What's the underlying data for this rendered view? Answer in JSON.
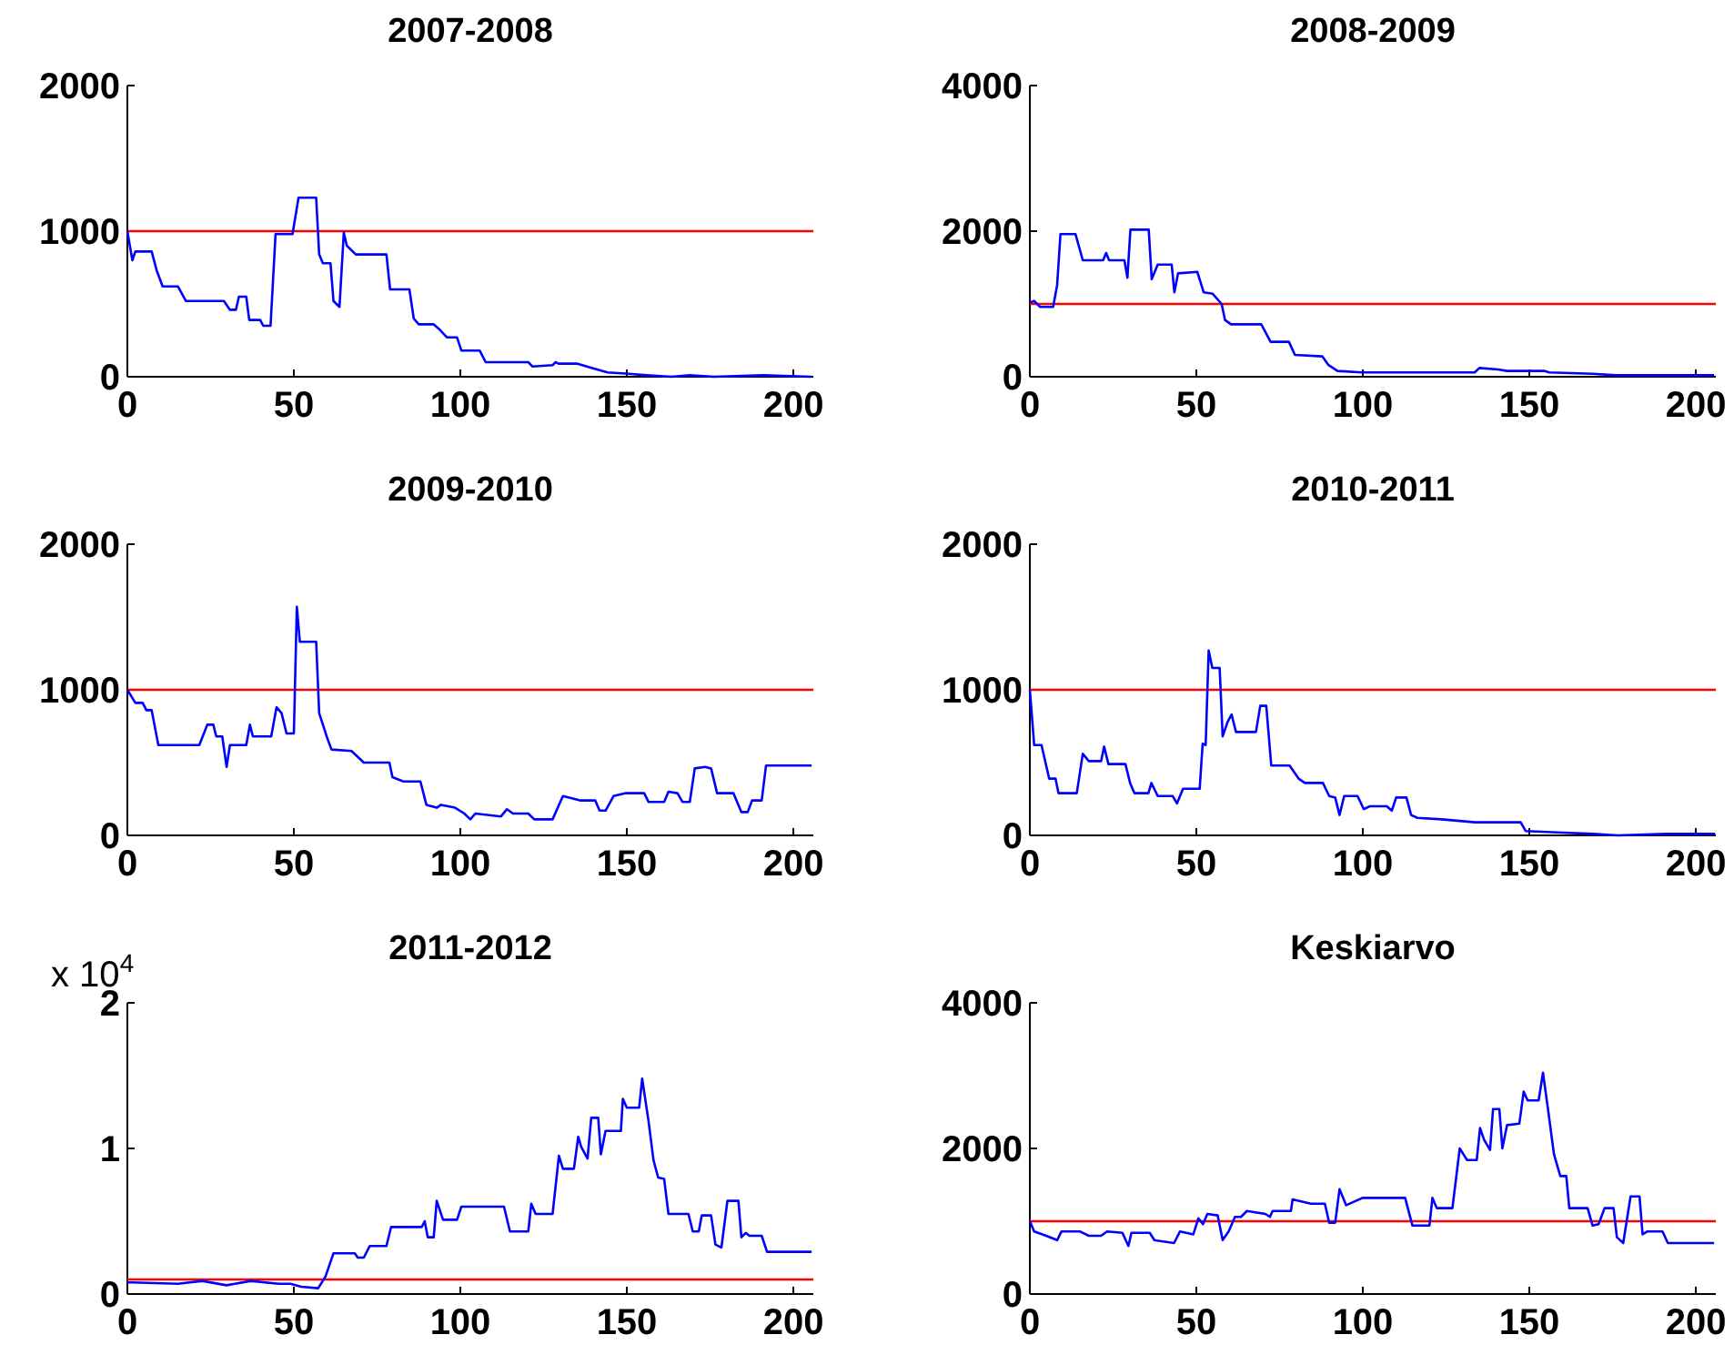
{
  "chart_data": [
    {
      "type": "line",
      "title": "2007-2008",
      "xlim": [
        0,
        206
      ],
      "xticks": [
        0,
        50,
        100,
        150,
        200
      ],
      "ylim": [
        0,
        2000
      ],
      "yticks": [
        0,
        1000,
        2000
      ],
      "ref_lines": [
        {
          "axis": "y",
          "value": 1000,
          "color": "#ff0000"
        }
      ],
      "x": [
        0,
        1.5,
        2.4,
        7.3,
        8.8,
        10.6,
        15.2,
        17.6,
        29,
        30.8,
        32.6,
        33.5,
        35.7,
        36.6,
        39.9,
        40.8,
        43,
        44.5,
        49.6,
        51.4,
        56.7,
        57.6,
        58.7,
        61,
        61.9,
        63.7,
        65,
        65.9,
        68.6,
        77.8,
        78.9,
        84.7,
        86,
        87.5,
        92,
        93.5,
        96,
        99,
        100.3,
        105.8,
        107.6,
        120.4,
        121.7,
        127.7,
        128.6,
        129.5,
        135,
        139.6,
        144.2,
        150.6,
        156,
        163.4,
        169,
        176,
        191,
        205.5
      ],
      "series": [
        {
          "color": "#0000ff",
          "values": [
            1000,
            800,
            860,
            860,
            730,
            620,
            620,
            520,
            520,
            460,
            460,
            550,
            550,
            390,
            390,
            350,
            350,
            980,
            980,
            1230,
            1230,
            840,
            780,
            780,
            520,
            480,
            990,
            900,
            840,
            840,
            600,
            600,
            400,
            360,
            360,
            330,
            270,
            270,
            180,
            180,
            100,
            100,
            70,
            80,
            100,
            90,
            90,
            60,
            30,
            20,
            10,
            0,
            10,
            0,
            10,
            0
          ]
        }
      ]
    },
    {
      "type": "line",
      "title": "2008-2009",
      "xlim": [
        0,
        206
      ],
      "xticks": [
        0,
        50,
        100,
        150,
        200
      ],
      "ylim": [
        0,
        4000
      ],
      "yticks": [
        0,
        2000,
        4000
      ],
      "ref_lines": [
        {
          "axis": "y",
          "value": 1000,
          "color": "#ff0000"
        }
      ],
      "x": [
        0,
        1.3,
        3.1,
        7,
        8.2,
        9.2,
        13.7,
        15.9,
        22,
        22.9,
        23.8,
        28.4,
        29.3,
        30.2,
        35.7,
        36.6,
        38.4,
        42.6,
        43.4,
        44.5,
        50.3,
        52.2,
        54.9,
        57.6,
        58.6,
        60.4,
        69.5,
        72.3,
        77.8,
        79.6,
        87.8,
        89.7,
        92.4,
        99.7,
        114.4,
        133.6,
        135,
        140.6,
        143.3,
        154.4,
        156,
        169,
        176,
        205.5
      ],
      "series": [
        {
          "color": "#0000ff",
          "values": [
            1020,
            1040,
            960,
            960,
            1260,
            1960,
            1960,
            1600,
            1600,
            1700,
            1600,
            1600,
            1360,
            2020,
            2020,
            1340,
            1540,
            1540,
            1160,
            1420,
            1440,
            1160,
            1140,
            1000,
            780,
            720,
            720,
            480,
            480,
            300,
            280,
            160,
            80,
            60,
            60,
            60,
            120,
            100,
            80,
            80,
            60,
            40,
            20,
            20
          ]
        }
      ]
    },
    {
      "type": "line",
      "title": "2009-2010",
      "xlim": [
        0,
        206
      ],
      "xticks": [
        0,
        50,
        100,
        150,
        200
      ],
      "ylim": [
        0,
        2000
      ],
      "yticks": [
        0,
        1000,
        2000
      ],
      "ref_lines": [
        {
          "axis": "y",
          "value": 1000,
          "color": "#ff0000"
        }
      ],
      "x": [
        0,
        2.4,
        4.6,
        5.7,
        7.3,
        9.3,
        21.6,
        24,
        25.8,
        26.7,
        28.5,
        29.8,
        30.8,
        35.7,
        36.8,
        37.7,
        43.2,
        44.8,
        46.3,
        47.8,
        50,
        50.9,
        51.8,
        56.7,
        57.6,
        60,
        61.3,
        67.3,
        71,
        78.7,
        79.6,
        82.9,
        88,
        89.8,
        92.9,
        94.2,
        98.4,
        101.2,
        103,
        104.5,
        112.2,
        114,
        115.8,
        120.4,
        122.2,
        127.7,
        130.8,
        135.9,
        140.5,
        141.8,
        143.6,
        146,
        149.7,
        155.2,
        156.5,
        161.2,
        162.5,
        165.2,
        166.7,
        168.9,
        170.4,
        173.5,
        175.3,
        177.1,
        182,
        184.4,
        186.3,
        187.6,
        190.5,
        191.8,
        205.5
      ],
      "series": [
        {
          "color": "#0000ff",
          "values": [
            1000,
            910,
            910,
            860,
            860,
            620,
            620,
            760,
            760,
            680,
            680,
            470,
            620,
            620,
            760,
            680,
            680,
            880,
            840,
            700,
            700,
            1570,
            1330,
            1330,
            840,
            670,
            590,
            580,
            500,
            500,
            400,
            370,
            370,
            210,
            190,
            210,
            190,
            150,
            110,
            150,
            130,
            180,
            150,
            150,
            110,
            110,
            270,
            240,
            240,
            170,
            170,
            270,
            290,
            290,
            230,
            230,
            300,
            290,
            230,
            230,
            460,
            470,
            460,
            290,
            290,
            160,
            160,
            240,
            240,
            480,
            480
          ]
        }
      ]
    },
    {
      "type": "line",
      "title": "2010-2011",
      "xlim": [
        0,
        206
      ],
      "xticks": [
        0,
        50,
        100,
        150,
        200
      ],
      "ylim": [
        0,
        2000
      ],
      "yticks": [
        0,
        1000,
        2000
      ],
      "ref_lines": [
        {
          "axis": "y",
          "value": 1000,
          "color": "#ff0000"
        }
      ],
      "x": [
        0,
        1.3,
        3.5,
        5.8,
        7.7,
        8.6,
        14.1,
        15.9,
        17.7,
        21.4,
        22.3,
        23.6,
        28.7,
        30.1,
        31.4,
        35.6,
        36.5,
        38.4,
        42.9,
        44.2,
        46,
        51,
        51.9,
        52.8,
        53.7,
        54.8,
        57,
        57.9,
        59.4,
        60.6,
        61.9,
        67.9,
        69.2,
        71,
        72.5,
        78,
        80.7,
        82.6,
        88,
        89.9,
        91.7,
        93,
        94.4,
        98.4,
        100.3,
        102.1,
        107.2,
        108.7,
        110,
        113.1,
        114.5,
        116.4,
        123.7,
        133.7,
        147.4,
        148.9,
        158.4,
        169.3,
        176.6,
        191,
        205.8
      ],
      "series": [
        {
          "color": "#0000ff",
          "values": [
            1000,
            620,
            620,
            390,
            390,
            290,
            290,
            560,
            510,
            510,
            610,
            490,
            490,
            360,
            290,
            290,
            360,
            270,
            270,
            220,
            320,
            320,
            630,
            620,
            1270,
            1150,
            1150,
            680,
            780,
            830,
            710,
            710,
            890,
            890,
            480,
            480,
            390,
            360,
            360,
            270,
            260,
            140,
            270,
            270,
            180,
            200,
            200,
            170,
            260,
            260,
            140,
            120,
            110,
            90,
            90,
            30,
            20,
            10,
            0,
            10,
            10
          ]
        }
      ]
    },
    {
      "type": "line",
      "title": "2011-2012",
      "xlim": [
        0,
        206
      ],
      "xticks": [
        0,
        50,
        100,
        150,
        200
      ],
      "ylim": [
        0,
        2
      ],
      "yticks": [
        0,
        1,
        2
      ],
      "annotations": [
        "x 10$^{4}$"
      ],
      "ref_lines": [
        {
          "axis": "y",
          "value": 0.1,
          "color": "#ff0000"
        }
      ],
      "x": [
        0,
        1.5,
        15.2,
        22.5,
        29.8,
        37.1,
        45.4,
        49,
        52.2,
        57.3,
        59.5,
        61.9,
        68.3,
        69.2,
        71,
        72.8,
        77.8,
        79.2,
        88.4,
        89.3,
        90.2,
        92,
        92.9,
        94.8,
        99,
        100.3,
        113.1,
        114.9,
        120.4,
        121.3,
        122.6,
        127.7,
        129.6,
        130.8,
        134.1,
        135.4,
        136.3,
        138.2,
        139.3,
        141.4,
        142.2,
        143.6,
        148.2,
        148.8,
        150,
        153.7,
        154.6,
        156.5,
        158,
        159.4,
        161.2,
        162.5,
        168.5,
        169.8,
        171.6,
        172.5,
        175.3,
        176.6,
        178.4,
        180.2,
        183.5,
        184.4,
        185.7,
        186.8,
        190.5,
        192.1,
        205.5
      ],
      "series": [
        {
          "color": "#0000ff",
          "values": [
            0.08,
            0.08,
            0.07,
            0.09,
            0.06,
            0.09,
            0.07,
            0.07,
            0.05,
            0.04,
            0.12,
            0.28,
            0.28,
            0.25,
            0.25,
            0.33,
            0.33,
            0.46,
            0.46,
            0.5,
            0.39,
            0.39,
            0.64,
            0.51,
            0.51,
            0.6,
            0.6,
            0.43,
            0.43,
            0.62,
            0.55,
            0.55,
            0.95,
            0.86,
            0.86,
            1.08,
            1.01,
            0.93,
            1.21,
            1.21,
            0.96,
            1.12,
            1.12,
            1.34,
            1.28,
            1.28,
            1.48,
            1.19,
            0.92,
            0.8,
            0.79,
            0.55,
            0.55,
            0.43,
            0.43,
            0.54,
            0.54,
            0.34,
            0.32,
            0.64,
            0.64,
            0.39,
            0.42,
            0.4,
            0.4,
            0.29,
            0.29
          ]
        }
      ]
    },
    {
      "type": "line",
      "title": "Keskiarvo",
      "xlim": [
        0,
        206
      ],
      "xticks": [
        0,
        50,
        100,
        150,
        200
      ],
      "ylim": [
        0,
        4000
      ],
      "yticks": [
        0,
        2000,
        4000
      ],
      "ref_lines": [
        {
          "axis": "y",
          "value": 1000,
          "color": "#ff0000"
        }
      ],
      "x": [
        0,
        1.3,
        4.9,
        8.2,
        9.5,
        15,
        17.7,
        21.4,
        23.2,
        27.8,
        29.6,
        30.5,
        36,
        37.4,
        43.3,
        45.1,
        49.1,
        50.6,
        52,
        53.3,
        56.4,
        57.9,
        59.7,
        61.6,
        63.4,
        65.2,
        70.7,
        72.1,
        72.9,
        78.4,
        78.9,
        84.4,
        88.6,
        89.9,
        91.7,
        93,
        95,
        99.9,
        112.7,
        114.9,
        120,
        120.9,
        122.2,
        126.9,
        129.1,
        131.3,
        134.2,
        135.2,
        136.4,
        138.2,
        139.1,
        141,
        141.9,
        143.3,
        147,
        148.3,
        149.5,
        152.8,
        154.1,
        155.6,
        157.4,
        159.3,
        161.1,
        162,
        167.5,
        169,
        170.8,
        172.6,
        175.3,
        176.3,
        178.2,
        180.4,
        183.1,
        184,
        185.5,
        190,
        191.6,
        205.5
      ],
      "series": [
        {
          "color": "#0000ff",
          "values": [
            1000,
            860,
            800,
            740,
            860,
            860,
            800,
            800,
            860,
            840,
            660,
            840,
            840,
            740,
            700,
            860,
            820,
            1040,
            960,
            1100,
            1080,
            740,
            860,
            1060,
            1060,
            1140,
            1100,
            1060,
            1140,
            1140,
            1300,
            1240,
            1240,
            980,
            980,
            1440,
            1220,
            1320,
            1320,
            940,
            940,
            1320,
            1180,
            1180,
            2000,
            1840,
            1840,
            2280,
            2120,
            1980,
            2540,
            2540,
            2000,
            2320,
            2340,
            2780,
            2660,
            2660,
            3040,
            2540,
            1920,
            1620,
            1620,
            1180,
            1180,
            940,
            960,
            1180,
            1180,
            780,
            700,
            1340,
            1340,
            820,
            860,
            860,
            700,
            700
          ]
        }
      ]
    }
  ]
}
